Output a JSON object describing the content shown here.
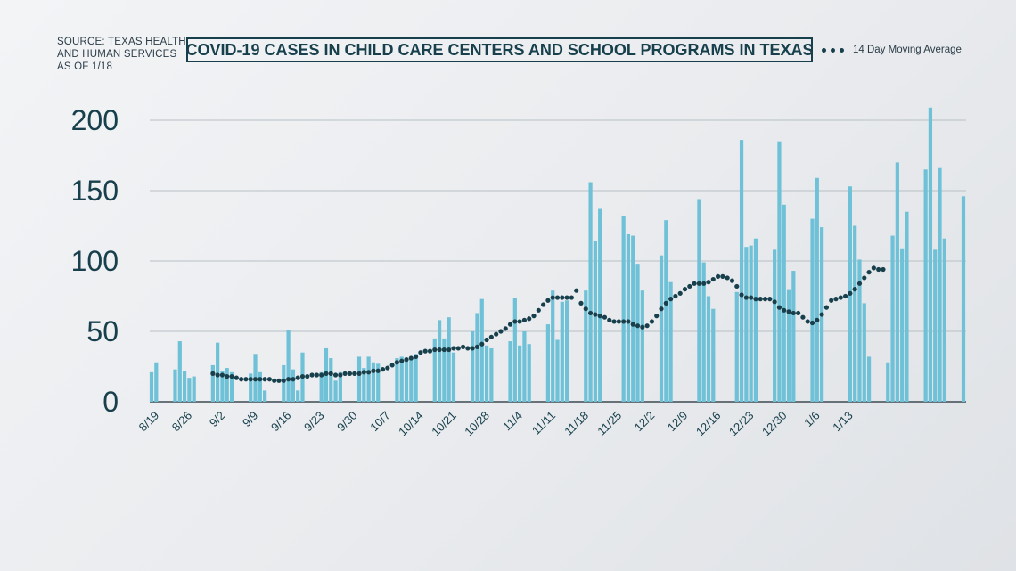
{
  "source": {
    "line1": "SOURCE: TEXAS HEALTH",
    "line2": "AND HUMAN SERVICES",
    "line3": "AS OF 1/18"
  },
  "colors": {
    "bar": "#6ec1d7",
    "dot": "#17404c",
    "grid": "#b8c0c6",
    "axis": "#3d4a52"
  },
  "chart_data": {
    "type": "bar",
    "title": "COVID-19 CASES IN CHILD CARE CENTERS AND SCHOOL PROGRAMS IN TEXAS",
    "xlabel": "",
    "ylabel": "",
    "ylim": [
      0,
      200
    ],
    "yticks": [
      0,
      50,
      100,
      150,
      200
    ],
    "grid": true,
    "legend": "top-right",
    "x_tick_labels": [
      "8/19",
      "8/26",
      "9/2",
      "9/9",
      "9/16",
      "9/23",
      "9/30",
      "10/7",
      "10/14",
      "10/21",
      "10/28",
      "11/4",
      "11/11",
      "11/18",
      "11/25",
      "12/2",
      "12/9",
      "12/16",
      "12/23",
      "12/30",
      "1/6",
      "1/13"
    ],
    "x_tick_index": [
      0,
      7,
      14,
      21,
      28,
      35,
      42,
      49,
      56,
      63,
      70,
      77,
      84,
      91,
      98,
      105,
      112,
      119,
      126,
      133,
      140,
      147
    ],
    "daily_cases": {
      "start": "8/19",
      "end": "1/18",
      "values": [
        21,
        28,
        0,
        0,
        0,
        23,
        43,
        22,
        17,
        18,
        0,
        0,
        0,
        26,
        42,
        22,
        24,
        21,
        0,
        0,
        0,
        20,
        34,
        21,
        8,
        0,
        0,
        0,
        26,
        51,
        23,
        8,
        35,
        0,
        0,
        0,
        21,
        38,
        31,
        15,
        21,
        0,
        0,
        0,
        32,
        24,
        32,
        28,
        27,
        0,
        0,
        0,
        31,
        32,
        30,
        31,
        34,
        0,
        0,
        0,
        45,
        58,
        45,
        60,
        35,
        0,
        0,
        0,
        50,
        63,
        73,
        40,
        38,
        0,
        0,
        0,
        43,
        74,
        40,
        50,
        41,
        0,
        0,
        0,
        55,
        79,
        44,
        71,
        72,
        0,
        0,
        0,
        79,
        156,
        114,
        137,
        0,
        0,
        0,
        0,
        132,
        119,
        118,
        98,
        79,
        0,
        0,
        0,
        104,
        129,
        85,
        0,
        0,
        0,
        0,
        0,
        144,
        99,
        75,
        66,
        0,
        0,
        0,
        0,
        78,
        186,
        110,
        111,
        116,
        0,
        0,
        0,
        108,
        185,
        140,
        80,
        93,
        0,
        0,
        0,
        130,
        159,
        124,
        0,
        0,
        0,
        0,
        0,
        153,
        125,
        101,
        70,
        32,
        0,
        0,
        0,
        28,
        118,
        170,
        109,
        135,
        0,
        0,
        0,
        165,
        209,
        108,
        166,
        116,
        0,
        0,
        0,
        146
      ]
    },
    "series": [
      {
        "name": "14 Day Moving Average",
        "style": "dotted-line",
        "start": "9/1",
        "values": [
          20,
          19,
          19,
          18,
          18,
          17,
          16,
          16,
          16,
          16,
          16,
          16,
          16,
          15,
          15,
          15,
          16,
          16,
          17,
          18,
          18,
          19,
          19,
          19,
          20,
          20,
          19,
          19,
          20,
          20,
          20,
          20,
          21,
          21,
          22,
          22,
          23,
          24,
          26,
          28,
          29,
          30,
          31,
          32,
          35,
          36,
          36,
          37,
          37,
          37,
          37,
          38,
          38,
          39,
          38,
          38,
          39,
          41,
          44,
          46,
          48,
          50,
          52,
          55,
          57,
          57,
          58,
          59,
          61,
          65,
          69,
          72,
          74,
          74,
          74,
          74,
          74,
          79,
          70,
          66,
          63,
          62,
          61,
          60,
          58,
          57,
          57,
          57,
          57,
          55,
          54,
          53,
          54,
          57,
          61,
          66,
          70,
          73,
          75,
          77,
          80,
          82,
          84,
          84,
          84,
          85,
          87,
          89,
          89,
          88,
          86,
          82,
          76,
          74,
          74,
          73,
          73,
          73,
          73,
          71,
          67,
          65,
          64,
          63,
          63,
          60,
          57,
          56,
          58,
          62,
          67,
          72,
          73,
          74,
          75,
          77,
          80,
          84,
          88,
          92,
          95,
          94,
          94
        ]
      }
    ]
  }
}
